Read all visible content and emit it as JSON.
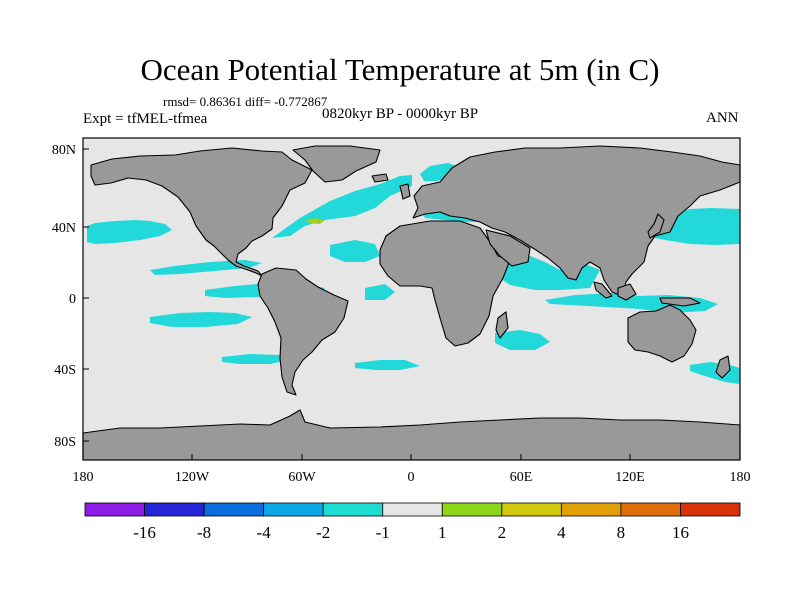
{
  "title": "Ocean Potential Temperature at 5m (in C)",
  "stats": "rmsd= 0.86361 diff= -0.772867",
  "experiment": "Expt = tfMEL-tfmea",
  "period": "0820kyr BP - 0000kyr BP",
  "season": "ANN",
  "map": {
    "projection": "cylindrical equidistant",
    "lon_range": [
      -180,
      180
    ],
    "lat_range": [
      -90,
      90
    ],
    "y_ticks": [
      {
        "label": "80N",
        "lat": 80
      },
      {
        "label": "40N",
        "lat": 40
      },
      {
        "label": "0",
        "lat": 0
      },
      {
        "label": "40S",
        "lat": -40
      },
      {
        "label": "80S",
        "lat": -80
      }
    ],
    "x_ticks": [
      {
        "label": "180",
        "lon": -180
      },
      {
        "label": "120W",
        "lon": -120
      },
      {
        "label": "60W",
        "lon": -60
      },
      {
        "label": "0",
        "lon": 0
      },
      {
        "label": "60E",
        "lon": 60
      },
      {
        "label": "120E",
        "lon": 120
      },
      {
        "label": "180",
        "lon": 180
      }
    ]
  },
  "colors": {
    "ocean_background": "#e6e6e6",
    "land": "#999999",
    "cool_anomaly": "#22d8d8",
    "strong_cool": "#0fa0e0",
    "warm_anomaly": "#9fd020"
  },
  "colorbar": {
    "boxes": [
      "#8c1ce6",
      "#2424d8",
      "#0b6ee0",
      "#0aa8e6",
      "#1ddcd2",
      "#e6e6e6",
      "#8ed61a",
      "#d2c80e",
      "#e1a00a",
      "#e06e0a",
      "#d8320a"
    ],
    "labels": [
      "-16",
      "-8",
      "-4",
      "-2",
      "-1",
      "1",
      "2",
      "4",
      "8",
      "16"
    ]
  }
}
